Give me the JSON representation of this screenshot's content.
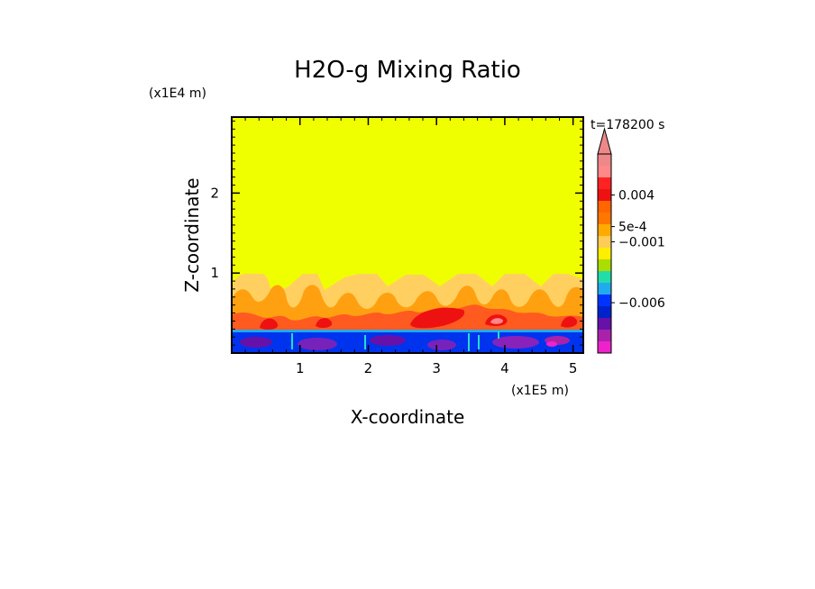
{
  "chart_data": {
    "type": "heatmap",
    "title": "H2O-g Mixing Ratio",
    "time_label": "t=178200 s",
    "xlabel": "X-coordinate",
    "ylabel": "Z-coordinate",
    "x_scale_label": "(x1E5 m)",
    "y_scale_label": "(x1E4 m)",
    "xlim": [
      0,
      5.15
    ],
    "ylim": [
      0,
      2.95
    ],
    "x_ticks": [
      {
        "value": 1,
        "label": "1"
      },
      {
        "value": 2,
        "label": "2"
      },
      {
        "value": 3,
        "label": "3"
      },
      {
        "value": 4,
        "label": "4"
      },
      {
        "value": 5,
        "label": "5"
      }
    ],
    "y_ticks": [
      {
        "value": 1,
        "label": "1"
      },
      {
        "value": 2,
        "label": "2"
      }
    ],
    "background_color": "#f0ff00",
    "colorbar": {
      "colors": [
        "#ee22cc",
        "#aa22aa",
        "#6611aa",
        "#0022cc",
        "#0033ff",
        "#22aaee",
        "#22ddaa",
        "#aadd00",
        "#ffee00",
        "#ffcc55",
        "#ffaa00",
        "#ff7700",
        "#ff6600",
        "#ee1111",
        "#ff2222",
        "#ff8888",
        "#ee8888"
      ],
      "labels": [
        {
          "level": 13.5,
          "text": "0.004"
        },
        {
          "level": 10.8,
          "text": "5e-4"
        },
        {
          "level": 9.5,
          "text": "−0.001"
        },
        {
          "level": 4.3,
          "text": "−0.006"
        }
      ]
    }
  }
}
